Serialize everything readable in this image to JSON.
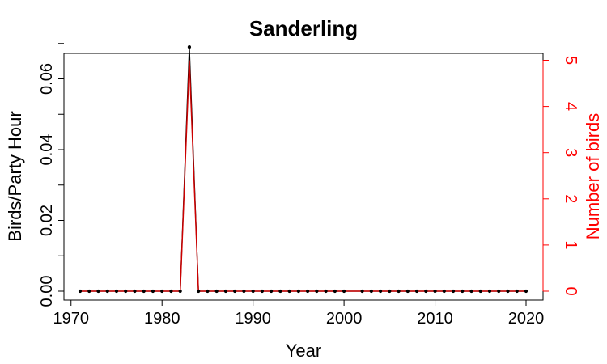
{
  "chart_data": {
    "type": "line",
    "title": "Sanderling",
    "xlabel": "Year",
    "ylabel_left": "Birds/Party Hour",
    "ylabel_right": "Number of birds",
    "xlim": [
      1971,
      2020
    ],
    "ylim_left": [
      0,
      0.07
    ],
    "ylim_right": [
      0,
      5.1
    ],
    "x_ticks": [
      1970,
      1980,
      1990,
      2000,
      2010,
      2020
    ],
    "y_ticks_left": [
      "0.00",
      "0.02",
      "0.04",
      "0.06"
    ],
    "y_ticks_right": [
      "0",
      "1",
      "2",
      "3",
      "4",
      "5"
    ],
    "grid": false,
    "colors": {
      "birds_per_party_hour": "#000000",
      "number_of_birds": "#cc0000",
      "right_axis": "#ff0000"
    },
    "years": [
      1971,
      1972,
      1973,
      1974,
      1975,
      1976,
      1977,
      1978,
      1979,
      1980,
      1981,
      1982,
      1983,
      1984,
      1985,
      1986,
      1987,
      1988,
      1989,
      1990,
      1991,
      1992,
      1993,
      1994,
      1995,
      1996,
      1997,
      1998,
      1999,
      2000,
      2002,
      2003,
      2004,
      2005,
      2006,
      2007,
      2008,
      2009,
      2010,
      2011,
      2012,
      2013,
      2014,
      2015,
      2016,
      2017,
      2018,
      2019,
      2020
    ],
    "series": [
      {
        "axis": "left",
        "values": [
          0,
          0,
          0,
          0,
          0,
          0,
          0,
          0,
          0,
          0,
          0,
          0,
          0.069,
          0,
          0,
          0,
          0,
          0,
          0,
          0,
          0,
          0,
          0,
          0,
          0,
          0,
          0,
          0,
          0,
          0,
          0,
          0,
          0,
          0,
          0,
          0,
          0,
          0,
          0,
          0,
          0,
          0,
          0,
          0,
          0,
          0,
          0,
          0,
          0
        ]
      },
      {
        "axis": "right",
        "values": [
          0,
          0,
          0,
          0,
          0,
          0,
          0,
          0,
          0,
          0,
          0,
          0,
          5,
          0,
          0,
          0,
          0,
          0,
          0,
          0,
          0,
          0,
          0,
          0,
          0,
          0,
          0,
          0,
          0,
          0,
          0,
          0,
          0,
          0,
          0,
          0,
          0,
          0,
          0,
          0,
          0,
          0,
          0,
          0,
          0,
          0,
          0,
          0,
          0
        ]
      }
    ]
  }
}
